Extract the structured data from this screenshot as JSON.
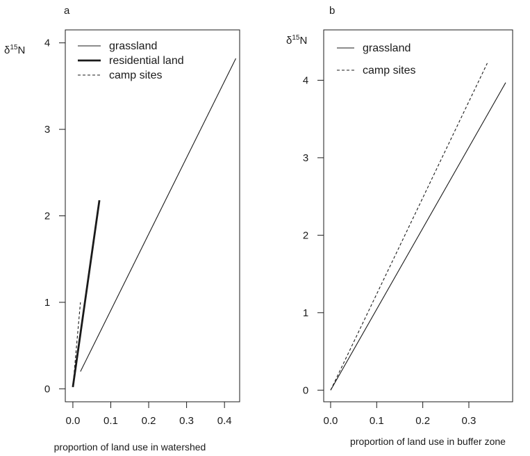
{
  "chart_data": [
    {
      "panel": "a",
      "type": "line",
      "xlabel": "proportion of land use in watershed",
      "ylabel": "δ15N",
      "ylabel_parts": {
        "symbol": "δ",
        "superscript": "15",
        "element": "N"
      },
      "xlim": [
        -0.02,
        0.44
      ],
      "ylim": [
        -0.15,
        4.15
      ],
      "xticks": [
        0.0,
        0.1,
        0.2,
        0.3,
        0.4
      ],
      "xtick_labels": [
        "0.0",
        "0.1",
        "0.2",
        "0.3",
        "0.4"
      ],
      "yticks": [
        0,
        1,
        2,
        3,
        4
      ],
      "ytick_labels": [
        "0",
        "1",
        "2",
        "3",
        "4"
      ],
      "legend_position": "top-left",
      "series": [
        {
          "name": "grassland",
          "style": "solid-thin",
          "x": [
            0.02,
            0.43
          ],
          "y": [
            0.2,
            3.82
          ]
        },
        {
          "name": "residential land",
          "style": "solid-thick",
          "x": [
            0.0,
            0.07
          ],
          "y": [
            0.02,
            2.18
          ]
        },
        {
          "name": "camp sites",
          "style": "dashed",
          "x": [
            0.0,
            0.02
          ],
          "y": [
            0.02,
            1.0
          ]
        }
      ]
    },
    {
      "panel": "b",
      "type": "line",
      "xlabel": "proportion of  land use in buffer zone",
      "ylabel": "δ15N",
      "ylabel_parts": {
        "symbol": "δ",
        "superscript": "15",
        "element": "N"
      },
      "xlim": [
        -0.015,
        0.395
      ],
      "ylim": [
        -0.15,
        4.65
      ],
      "xticks": [
        0.0,
        0.1,
        0.2,
        0.3
      ],
      "xtick_labels": [
        "0.0",
        "0.1",
        "0.2",
        "0.3"
      ],
      "yticks": [
        0,
        1,
        2,
        3,
        4
      ],
      "ytick_labels": [
        "0",
        "1",
        "2",
        "3",
        "4"
      ],
      "legend_position": "top-left",
      "series": [
        {
          "name": "grassland",
          "style": "solid-thin",
          "x": [
            0.0,
            0.38
          ],
          "y": [
            0.0,
            3.97
          ]
        },
        {
          "name": "camp sites",
          "style": "dashed",
          "x": [
            0.0,
            0.34
          ],
          "y": [
            0.0,
            4.22
          ]
        }
      ]
    }
  ]
}
